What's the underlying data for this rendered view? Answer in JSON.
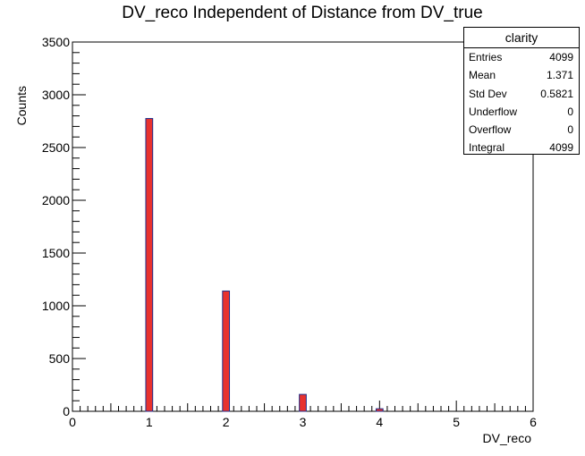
{
  "chart_data": {
    "type": "bar",
    "title": "DV_reco Independent of Distance from DV_true",
    "xlabel": "DV_reco",
    "ylabel": "Counts",
    "xlim": [
      0,
      6
    ],
    "ylim": [
      0,
      3500
    ],
    "x_ticks": [
      "0",
      "1",
      "2",
      "3",
      "4",
      "5",
      "6"
    ],
    "y_ticks": [
      "0",
      "500",
      "1000",
      "1500",
      "2000",
      "2500",
      "3000",
      "3500"
    ],
    "bar_color": "#e8322e",
    "bar_edge_color": "#1f2d8a",
    "bins": [
      {
        "x": 1,
        "value": 2775
      },
      {
        "x": 2,
        "value": 1140
      },
      {
        "x": 3,
        "value": 160
      },
      {
        "x": 4,
        "value": 24
      }
    ]
  },
  "stats": {
    "title": "clarity",
    "rows": [
      {
        "label": "Entries",
        "value": "4099"
      },
      {
        "label": "Mean",
        "value": "1.371"
      },
      {
        "label": "Std Dev",
        "value": "0.5821"
      },
      {
        "label": "Underflow",
        "value": "0"
      },
      {
        "label": "Overflow",
        "value": "0"
      },
      {
        "label": "Integral",
        "value": "4099"
      }
    ]
  }
}
